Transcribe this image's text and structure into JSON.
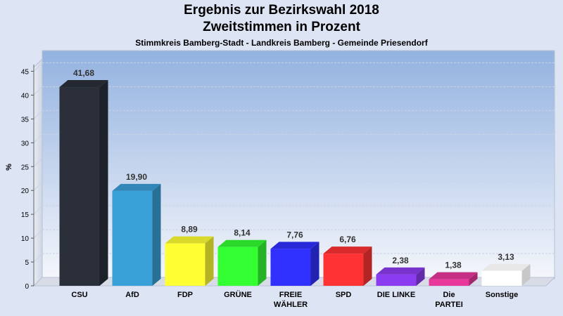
{
  "chart_data": {
    "type": "bar",
    "title": "Ergebnis zur Bezirkswahl 2018",
    "subtitle": "Zweitstimmen in Prozent",
    "caption": "Stimmkreis Bamberg-Stadt - Landkreis Bamberg - Gemeinde Priesendorf",
    "ylabel": "%",
    "ylim": [
      0,
      47
    ],
    "yticks": [
      0,
      5,
      10,
      15,
      20,
      25,
      30,
      35,
      40,
      45
    ],
    "grid": true,
    "categories": [
      [
        "CSU"
      ],
      [
        "AfD"
      ],
      [
        "FDP"
      ],
      [
        "GRÜNE"
      ],
      [
        "FREIE",
        "WÄHLER"
      ],
      [
        "SPD"
      ],
      [
        "DIE LINKE"
      ],
      [
        "Die",
        "PARTEI"
      ],
      [
        "Sonstige"
      ]
    ],
    "values": [
      41.68,
      19.9,
      8.89,
      8.14,
      7.76,
      6.76,
      2.38,
      1.38,
      3.13
    ],
    "value_labels": [
      "41,68",
      "19,90",
      "8,89",
      "8,14",
      "7,76",
      "6,76",
      "2,38",
      "1,38",
      "3,13"
    ],
    "colors": [
      "#2a2f3a",
      "#3aa0d8",
      "#ffff33",
      "#33ff33",
      "#3030ff",
      "#ff3333",
      "#8c3cf0",
      "#e8389c",
      "#ffffff"
    ]
  }
}
